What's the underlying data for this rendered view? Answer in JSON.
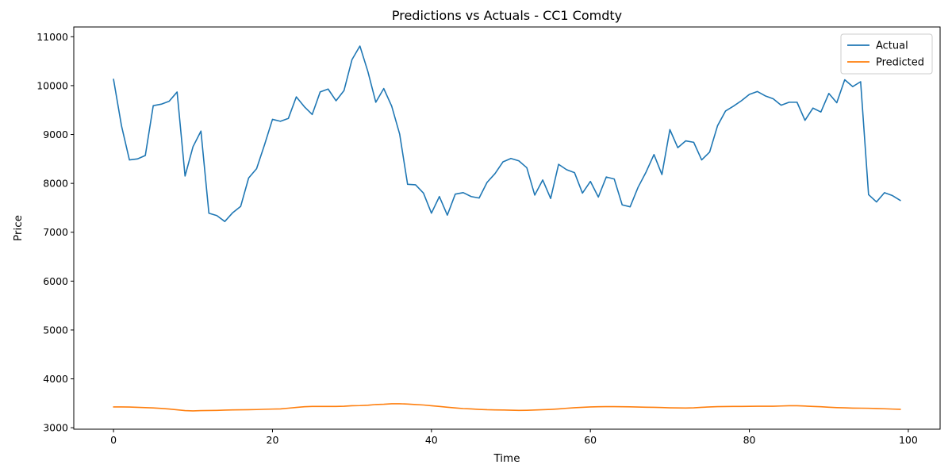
{
  "chart_data": {
    "type": "line",
    "title": "Predictions vs Actuals - CC1 Comdty",
    "xlabel": "Time",
    "ylabel": "Price",
    "xlim": [
      -5,
      104
    ],
    "ylim": [
      2970,
      11200
    ],
    "xticks": [
      0,
      20,
      40,
      60,
      80,
      100
    ],
    "yticks": [
      3000,
      4000,
      5000,
      6000,
      7000,
      8000,
      9000,
      10000,
      11000
    ],
    "grid": false,
    "legend_position": "upper right",
    "x": [
      0,
      1,
      2,
      3,
      4,
      5,
      6,
      7,
      8,
      9,
      10,
      11,
      12,
      13,
      14,
      15,
      16,
      17,
      18,
      19,
      20,
      21,
      22,
      23,
      24,
      25,
      26,
      27,
      28,
      29,
      30,
      31,
      32,
      33,
      34,
      35,
      36,
      37,
      38,
      39,
      40,
      41,
      42,
      43,
      44,
      45,
      46,
      47,
      48,
      49,
      50,
      51,
      52,
      53,
      54,
      55,
      56,
      57,
      58,
      59,
      60,
      61,
      62,
      63,
      64,
      65,
      66,
      67,
      68,
      69,
      70,
      71,
      72,
      73,
      74,
      75,
      76,
      77,
      78,
      79,
      80,
      81,
      82,
      83,
      84,
      85,
      86,
      87,
      88,
      89,
      90,
      91,
      92,
      93,
      94,
      95,
      96,
      97,
      98,
      99
    ],
    "series": [
      {
        "name": "Actual",
        "color": "#1f77b4",
        "values": [
          10130,
          9180,
          8480,
          8500,
          8570,
          9590,
          9620,
          9680,
          9870,
          8150,
          8750,
          9070,
          7390,
          7340,
          7220,
          7400,
          7530,
          8110,
          8300,
          8790,
          9310,
          9270,
          9330,
          9770,
          9570,
          9410,
          9870,
          9930,
          9690,
          9900,
          10530,
          10810,
          10290,
          9660,
          9940,
          9580,
          9010,
          7980,
          7970,
          7800,
          7390,
          7730,
          7350,
          7780,
          7810,
          7730,
          7700,
          8020,
          8200,
          8440,
          8510,
          8460,
          8320,
          7760,
          8070,
          7690,
          8390,
          8280,
          8220,
          7800,
          8040,
          7720,
          8130,
          8090,
          7560,
          7520,
          7920,
          8230,
          8590,
          8180,
          9100,
          8730,
          8870,
          8840,
          8480,
          8640,
          9180,
          9480,
          9580,
          9690,
          9820,
          9880,
          9790,
          9730,
          9600,
          9660,
          9660,
          9290,
          9540,
          9460,
          9840,
          9650,
          10120,
          9980,
          10080,
          7770,
          7620,
          7810,
          7750,
          7650
        ]
      },
      {
        "name": "Predicted",
        "color": "#ff7f0e",
        "values": [
          3425,
          3425,
          3423,
          3418,
          3412,
          3405,
          3395,
          3383,
          3367,
          3350,
          3345,
          3350,
          3353,
          3355,
          3360,
          3365,
          3367,
          3368,
          3372,
          3378,
          3382,
          3385,
          3400,
          3415,
          3430,
          3435,
          3435,
          3435,
          3436,
          3440,
          3450,
          3453,
          3460,
          3475,
          3480,
          3490,
          3490,
          3485,
          3475,
          3465,
          3450,
          3435,
          3420,
          3405,
          3392,
          3385,
          3375,
          3368,
          3365,
          3363,
          3358,
          3355,
          3357,
          3362,
          3368,
          3375,
          3385,
          3398,
          3410,
          3418,
          3425,
          3430,
          3432,
          3432,
          3430,
          3427,
          3423,
          3420,
          3417,
          3413,
          3408,
          3405,
          3403,
          3408,
          3417,
          3425,
          3432,
          3433,
          3435,
          3436,
          3438,
          3440,
          3440,
          3440,
          3445,
          3450,
          3450,
          3443,
          3435,
          3430,
          3420,
          3412,
          3407,
          3402,
          3400,
          3398,
          3393,
          3388,
          3382,
          3377
        ]
      }
    ]
  }
}
